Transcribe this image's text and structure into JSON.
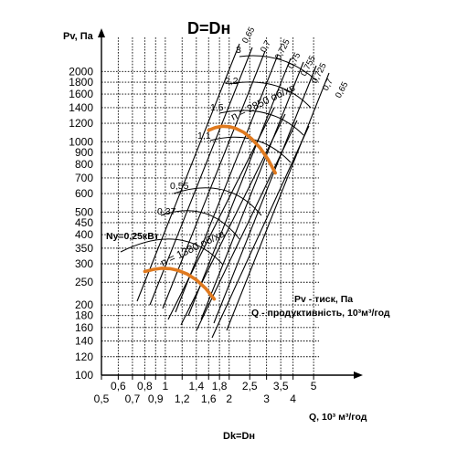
{
  "chart_data": {
    "type": "line",
    "title": "D=Dн",
    "footer": "Dk=Dн",
    "y_axis_label": "Pv, Па",
    "x_axis_label": "Q, 10³ м³/год",
    "x_scale": "log",
    "y_scale": "log",
    "xlim": [
      0.5,
      5.3
    ],
    "ylim": [
      100,
      2700
    ],
    "y_ticks": [
      "100",
      "120",
      "140",
      "160",
      "180",
      "200",
      "250",
      "300",
      "350",
      "400",
      "450",
      "500",
      "600",
      "700",
      "800",
      "900",
      "1000",
      "1200",
      "1400",
      "1600",
      "1800",
      "2000"
    ],
    "x_ticks_upper": [
      "0,6",
      "0,8",
      "1",
      "1,4",
      "1,8",
      "2,5",
      "3,5",
      "5"
    ],
    "x_ticks_lower": [
      "0,5",
      "0,7",
      "0,9",
      "1,2",
      "1,6",
      "2",
      "3",
      "4"
    ],
    "legend_lines": [
      "Pv - тиск, Па",
      "Q - продуктивність, 10³м³/год"
    ],
    "power_labels": [
      "Ny=0,25кВт",
      "0,37",
      "0,55",
      "1,1",
      "1,5",
      "2,2",
      "3"
    ],
    "efficiency_labels": [
      "0,65",
      "0,7",
      "0,725",
      "0,75",
      "0,755",
      "0,725",
      "0,7",
      "0,65"
    ],
    "series": [
      {
        "name": "n = 2850 об/хв",
        "color": "#e07a1f",
        "x": [
          1.6,
          1.72,
          1.85,
          2.0,
          2.15,
          2.35,
          2.55,
          2.8,
          3.05,
          3.3
        ],
        "y": [
          1120,
          1150,
          1165,
          1160,
          1140,
          1095,
          1030,
          940,
          840,
          735
        ]
      },
      {
        "name": "n = 1380 об/хв",
        "color": "#e07a1f",
        "x": [
          0.8,
          0.88,
          0.96,
          1.05,
          1.15,
          1.27,
          1.4,
          1.55,
          1.7
        ],
        "y": [
          278,
          284,
          287,
          286,
          281,
          271,
          256,
          235,
          212
        ]
      }
    ]
  }
}
